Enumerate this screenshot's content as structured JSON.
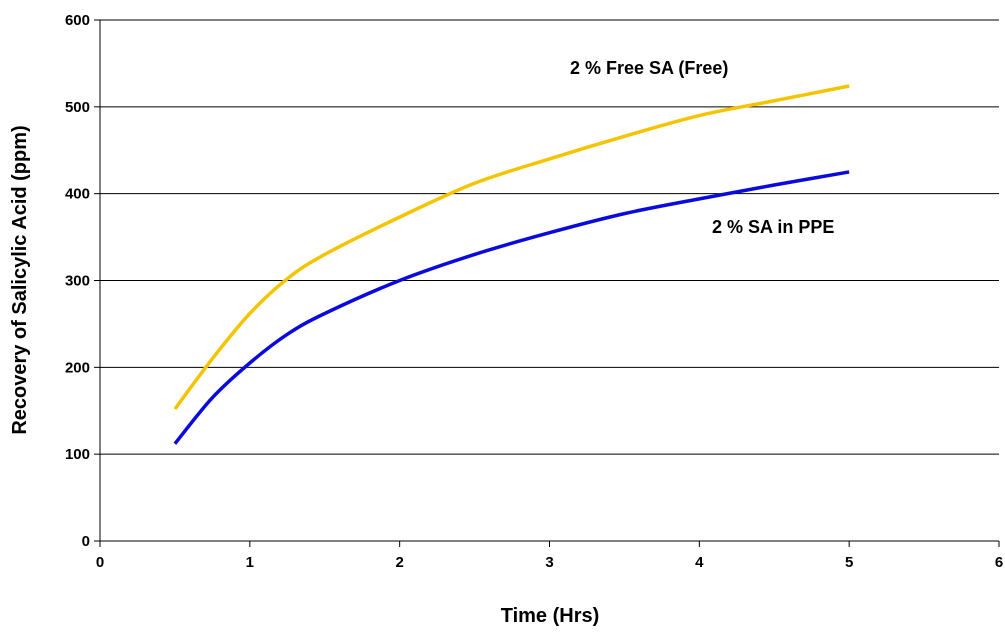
{
  "chart_data": {
    "type": "line",
    "title": "",
    "xlabel": "Time (Hrs)",
    "ylabel": "Recovery of Salicylic Acid (ppm)",
    "xlim": [
      0,
      6
    ],
    "ylim": [
      0,
      600
    ],
    "xticks": [
      "0",
      "1",
      "2",
      "3",
      "4",
      "5",
      "6"
    ],
    "yticks": [
      "0",
      "100",
      "200",
      "300",
      "400",
      "500",
      "600"
    ],
    "grid": "horizontal",
    "legend": "none (direct labels)",
    "series": [
      {
        "name": "2 % Free SA (Free)",
        "color": "#F5C400",
        "x": [
          0.5,
          0.75,
          1.0,
          1.25,
          1.5,
          2.0,
          2.5,
          3.0,
          3.5,
          4.0,
          4.5,
          5.0
        ],
        "y": [
          152,
          210,
          262,
          302,
          330,
          373,
          412,
          440,
          466,
          490,
          507,
          524
        ]
      },
      {
        "name": "2 % SA in PPE",
        "color": "#0A0ADC",
        "x": [
          0.5,
          0.75,
          1.0,
          1.25,
          1.5,
          2.0,
          2.5,
          3.0,
          3.5,
          4.0,
          4.5,
          5.0
        ],
        "y": [
          112,
          165,
          205,
          238,
          262,
          300,
          330,
          355,
          377,
          394,
          410,
          425
        ]
      }
    ]
  }
}
